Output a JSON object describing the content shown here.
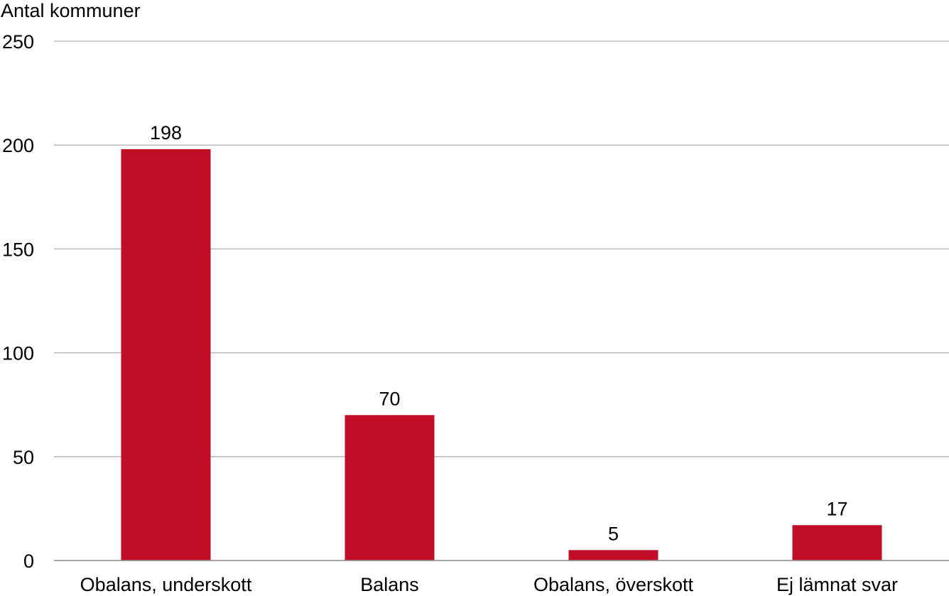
{
  "chart_data": {
    "type": "bar",
    "title": "",
    "xlabel": "",
    "ylabel": "Antal kommuner",
    "categories": [
      "Obalans, underskott",
      "Balans",
      "Obalans, överskott",
      "Ej lämnat svar"
    ],
    "values": [
      198,
      70,
      5,
      17
    ],
    "value_labels": [
      "198",
      "70",
      "5",
      "17"
    ],
    "ylim": [
      0,
      250
    ],
    "yticks": [
      0,
      50,
      100,
      150,
      200,
      250
    ],
    "ytick_labels": [
      "0",
      "50",
      "100",
      "150",
      "200",
      "250"
    ],
    "grid": true,
    "legend": "none",
    "bar_color": "#c10d26"
  }
}
